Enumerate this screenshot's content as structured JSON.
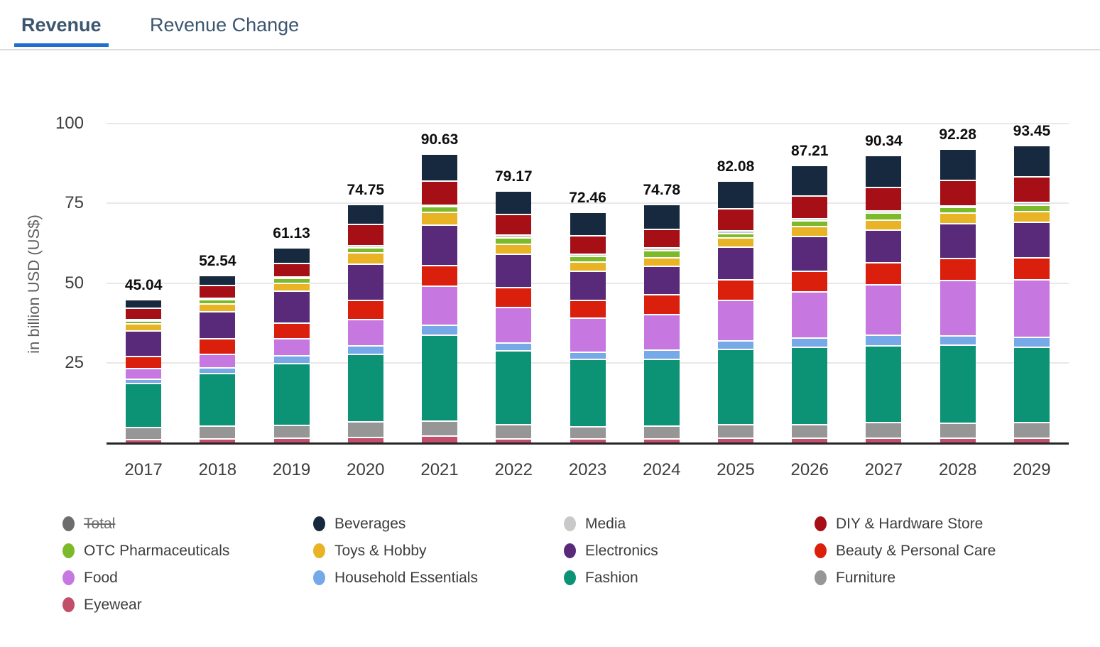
{
  "tabs": [
    {
      "label": "Revenue",
      "active": true
    },
    {
      "label": "Revenue Change",
      "active": false
    }
  ],
  "chart_data": {
    "type": "bar",
    "stacked": true,
    "ylabel": "in billion USD (US$)",
    "ylim": [
      0,
      100
    ],
    "yticks": [
      100,
      75,
      50,
      25
    ],
    "grid": true,
    "categories": [
      "2017",
      "2018",
      "2019",
      "2020",
      "2021",
      "2022",
      "2023",
      "2024",
      "2025",
      "2026",
      "2027",
      "2028",
      "2029"
    ],
    "totals": [
      45.04,
      52.54,
      61.13,
      74.75,
      90.63,
      79.17,
      72.46,
      74.78,
      82.08,
      87.21,
      90.34,
      92.28,
      93.45
    ],
    "series": [
      {
        "name": "Eyewear",
        "color": "#c14f6b",
        "values": [
          1.1,
          1.4,
          1.5,
          1.7,
          2.2,
          1.3,
          1.3,
          1.3,
          1.5,
          1.5,
          1.5,
          1.5,
          1.6
        ]
      },
      {
        "name": "Furniture",
        "color": "#969696",
        "values": [
          3.7,
          3.9,
          4.1,
          4.9,
          4.7,
          4.4,
          3.9,
          3.95,
          4.2,
          4.3,
          4.9,
          4.7,
          4.85
        ]
      },
      {
        "name": "Fashion",
        "color": "#0c9376",
        "values": [
          13.9,
          16.5,
          19.3,
          21.35,
          27.0,
          23.2,
          21.0,
          21.0,
          23.6,
          24.2,
          24.2,
          24.6,
          23.6
        ]
      },
      {
        "name": "Household Essentials",
        "color": "#76a9e8",
        "values": [
          1.4,
          1.8,
          2.5,
          2.6,
          3.1,
          2.5,
          2.4,
          2.9,
          2.7,
          3.0,
          3.3,
          2.9,
          3.1
        ]
      },
      {
        "name": "Food",
        "color": "#c678e0",
        "values": [
          3.2,
          4.2,
          5.3,
          8.3,
          12.2,
          11.2,
          10.6,
          11.2,
          12.7,
          14.5,
          15.7,
          17.4,
          18.0
        ]
      },
      {
        "name": "Beauty & Personal Care",
        "color": "#da200c",
        "values": [
          3.9,
          4.9,
          4.9,
          5.9,
          6.6,
          6.1,
          5.5,
          6.2,
          6.5,
          6.5,
          7.0,
          6.9,
          7.0
        ]
      },
      {
        "name": "Electronics",
        "color": "#592a7a",
        "values": [
          8.0,
          8.5,
          10.0,
          11.3,
          12.5,
          10.5,
          9.3,
          8.9,
          10.3,
          10.9,
          10.3,
          10.9,
          11.1
        ]
      },
      {
        "name": "Toys & Hobby",
        "color": "#e8b325",
        "values": [
          2.2,
          2.5,
          2.5,
          3.6,
          4.1,
          3.1,
          2.9,
          2.8,
          2.9,
          3.0,
          3.0,
          3.2,
          3.4
        ]
      },
      {
        "name": "OTC Pharmaceuticals",
        "color": "#7dba29",
        "values": [
          1.0,
          1.2,
          1.5,
          1.5,
          1.8,
          2.0,
          1.8,
          2.1,
          1.3,
          1.8,
          2.3,
          1.8,
          1.9
        ]
      },
      {
        "name": "Media",
        "color": "#c9c9c9",
        "values": [
          0.4,
          0.4,
          0.5,
          0.7,
          0.5,
          0.9,
          0.5,
          0.9,
          0.9,
          0.8,
          0.6,
          0.6,
          1.0
        ]
      },
      {
        "name": "DIY & Hardware Store",
        "color": "#a50f15",
        "values": [
          3.4,
          4.1,
          4.3,
          6.8,
          7.5,
          6.5,
          5.9,
          5.9,
          7.0,
          7.0,
          7.5,
          8.0,
          8.1
        ]
      },
      {
        "name": "Beverages",
        "color": "#17293e",
        "values": [
          2.8,
          3.1,
          4.8,
          6.1,
          8.4,
          7.5,
          7.4,
          7.6,
          8.5,
          9.7,
          10.0,
          9.8,
          9.8
        ]
      }
    ]
  },
  "legend": {
    "items": [
      {
        "label": "Total",
        "color": "#6d6d6d",
        "disabled": true
      },
      {
        "label": "Beverages",
        "color": "#17293e",
        "disabled": false
      },
      {
        "label": "Media",
        "color": "#c9c9c9",
        "disabled": false
      },
      {
        "label": "DIY & Hardware Store",
        "color": "#a50f15",
        "disabled": false
      },
      {
        "label": "OTC Pharmaceuticals",
        "color": "#7dba29",
        "disabled": false
      },
      {
        "label": "Toys & Hobby",
        "color": "#e8b325",
        "disabled": false
      },
      {
        "label": "Electronics",
        "color": "#592a7a",
        "disabled": false
      },
      {
        "label": "Beauty & Personal Care",
        "color": "#da200c",
        "disabled": false
      },
      {
        "label": "Food",
        "color": "#c678e0",
        "disabled": false
      },
      {
        "label": "Household Essentials",
        "color": "#76a9e8",
        "disabled": false
      },
      {
        "label": "Fashion",
        "color": "#0c9376",
        "disabled": false
      },
      {
        "label": "Furniture",
        "color": "#969696",
        "disabled": false
      },
      {
        "label": "Eyewear",
        "color": "#c14f6b",
        "disabled": false
      }
    ]
  }
}
